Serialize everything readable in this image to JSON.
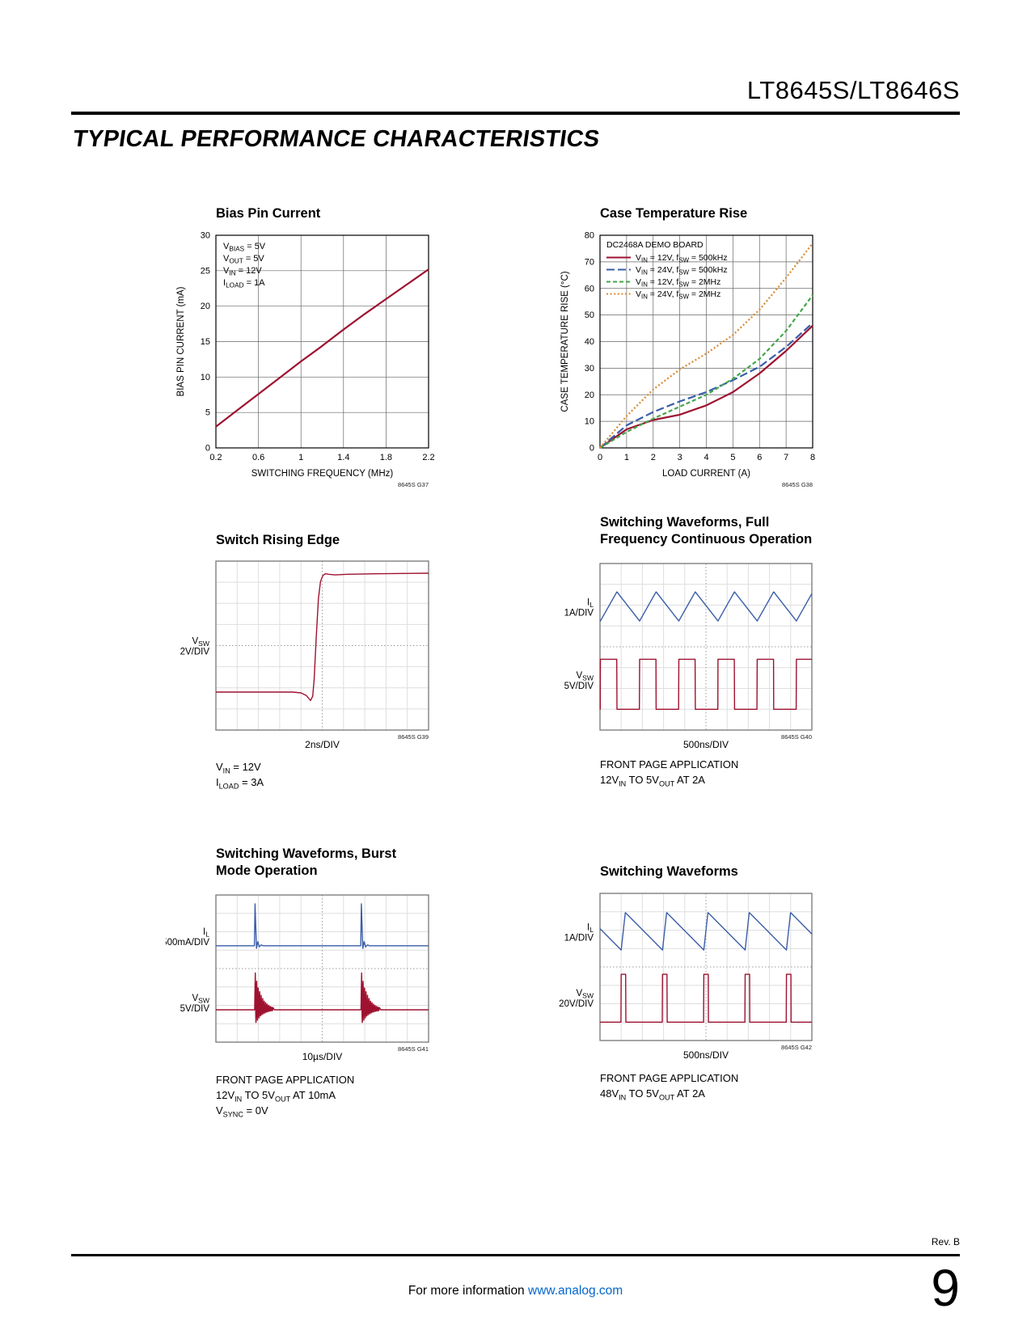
{
  "page": {
    "header_title": "LT8645S/LT8646S",
    "section_title": "TYPICAL PERFORMANCE CHARACTERISTICS",
    "footer": {
      "rev": "Rev. B",
      "page_number": "9",
      "info_text": "For more information ",
      "info_link": "www.analog.com"
    }
  },
  "colors": {
    "red": "#9E1230",
    "blue": "#3A5DA8",
    "green": "#44A64B",
    "orange": "#D78A2E",
    "grid": "#666666",
    "frame": "#000000",
    "scope_grid": "#DEDEDE",
    "scope_center": "#9A9A9A",
    "scope_frame": "#777777",
    "link": "#0066CC"
  },
  "chart_data": [
    {
      "id": "G37",
      "type": "line",
      "title_lines": [
        "Bias Pin Current"
      ],
      "xlabel": "SWITCHING FREQUENCY (MHz)",
      "ylabel": "BIAS PIN CURRENT (mA)",
      "xlim": [
        0.2,
        2.2
      ],
      "xticks": [
        "0.2",
        "0.6",
        "1",
        "1.4",
        "1.8",
        "2.2"
      ],
      "ylim": [
        0,
        30
      ],
      "yticks": [
        "0",
        "5",
        "10",
        "15",
        "20",
        "25",
        "30"
      ],
      "annotations": [
        "V_{BIAS} = 5V",
        "V_{OUT} = 5V",
        "V_{IN} = 12V",
        "I_{LOAD} = 1A"
      ],
      "watermark": "8645S G37",
      "series": [
        {
          "name": "bias pin current",
          "color": "red",
          "dash": "solid",
          "x": [
            0.2,
            0.4,
            0.6,
            0.8,
            1.0,
            1.2,
            1.4,
            1.6,
            1.8,
            2.0,
            2.2
          ],
          "y": [
            3.0,
            5.3,
            7.6,
            9.9,
            12.2,
            14.4,
            16.7,
            18.9,
            21.0,
            23.1,
            25.2
          ]
        }
      ]
    },
    {
      "id": "G38",
      "type": "line",
      "title_lines": [
        "Case Temperature Rise"
      ],
      "xlabel": "LOAD CURRENT (A)",
      "ylabel": "CASE TEMPERATURE RISE (°C)",
      "xlim": [
        0,
        8
      ],
      "xticks": [
        "0",
        "1",
        "2",
        "3",
        "4",
        "5",
        "6",
        "7",
        "8"
      ],
      "ylim": [
        0,
        80
      ],
      "yticks": [
        "0",
        "10",
        "20",
        "30",
        "40",
        "50",
        "60",
        "70",
        "80"
      ],
      "legend_title": "DC2468A DEMO BOARD",
      "watermark": "8645S G38",
      "series": [
        {
          "name": "V_{IN} = 12V, f_{SW} = 500kHz",
          "color": "red",
          "dash": "solid",
          "x": [
            0,
            1,
            2,
            3,
            4,
            5,
            6,
            7,
            8
          ],
          "y": [
            0,
            7,
            10.5,
            12.5,
            16,
            21,
            28,
            36.5,
            46
          ]
        },
        {
          "name": "V_{IN} = 24V, f_{SW} = 500kHz",
          "color": "blue",
          "dash": "long",
          "x": [
            0,
            1,
            2,
            3,
            4,
            5,
            6,
            7,
            8
          ],
          "y": [
            0,
            8.5,
            13.5,
            17.5,
            21,
            25.5,
            30.5,
            38,
            47
          ]
        },
        {
          "name": "V_{IN} = 12V, f_{SW} = 2MHz",
          "color": "green",
          "dash": "mid",
          "x": [
            0,
            1,
            2,
            3,
            4,
            5,
            6,
            7,
            8
          ],
          "y": [
            0,
            6,
            11,
            15.5,
            20,
            26,
            33.5,
            44,
            57.5
          ]
        },
        {
          "name": "V_{IN} = 24V, f_{SW} = 2MHz",
          "color": "orange",
          "dash": "dot",
          "x": [
            0,
            1,
            2,
            3,
            4,
            5,
            6,
            7,
            8
          ],
          "y": [
            0,
            12,
            22,
            29.5,
            35.5,
            42.5,
            52,
            64,
            77
          ]
        }
      ]
    },
    {
      "id": "G39",
      "type": "scope",
      "title_lines": [
        "Switch Rising Edge"
      ],
      "time_label": "2ns/DIV",
      "watermark": "8645S G39",
      "left_labels": [
        {
          "lines": [
            "V_{SW}",
            "2V/DIV"
          ],
          "y": 0.5
        }
      ],
      "notes": [
        "V_{IN} = 12V",
        "I_{LOAD} = 3A"
      ],
      "traces": [
        {
          "color": "red",
          "gen": "points",
          "points": [
            [
              0,
              0.775
            ],
            [
              0.36,
              0.775
            ],
            [
              0.4,
              0.78
            ],
            [
              0.425,
              0.795
            ],
            [
              0.445,
              0.825
            ],
            [
              0.455,
              0.8
            ],
            [
              0.462,
              0.7
            ],
            [
              0.472,
              0.45
            ],
            [
              0.482,
              0.22
            ],
            [
              0.492,
              0.12
            ],
            [
              0.503,
              0.085
            ],
            [
              0.515,
              0.075
            ],
            [
              0.53,
              0.078
            ],
            [
              0.56,
              0.082
            ],
            [
              0.62,
              0.078
            ],
            [
              0.75,
              0.075
            ],
            [
              1,
              0.072
            ]
          ]
        }
      ]
    },
    {
      "id": "G40",
      "type": "scope",
      "title_lines": [
        "Switching Waveforms, Full",
        "Frequency Continuous Operation"
      ],
      "time_label": "500ns/DIV",
      "watermark": "8645S G40",
      "left_labels": [
        {
          "lines": [
            "I_{L}",
            "1A/DIV"
          ],
          "y": 0.26
        },
        {
          "lines": [
            "V_{SW}",
            "5V/DIV"
          ],
          "y": 0.7
        }
      ],
      "notes": [
        "FRONT PAGE APPLICATION",
        "12V_{IN} TO 5V_{OUT} AT 2A"
      ],
      "traces": [
        {
          "color": "blue",
          "gen": "tri",
          "period": 0.185,
          "rise": 0.42,
          "x0": 0.002,
          "yTop": 0.17,
          "yBottom": 0.345
        },
        {
          "color": "red",
          "gen": "pulse",
          "period": 0.185,
          "width": 0.42,
          "x0": 0.002,
          "yHigh": 0.575,
          "yLow": 0.875
        }
      ]
    },
    {
      "id": "G41",
      "type": "scope",
      "title_lines": [
        "Switching Waveforms, Burst",
        "Mode Operation"
      ],
      "time_label": "10µs/DIV",
      "watermark": "8645S G41",
      "left_labels": [
        {
          "lines": [
            "I_{L}",
            "500mA/DIV"
          ],
          "y": 0.28
        },
        {
          "lines": [
            "V_{SW}",
            "5V/DIV"
          ],
          "y": 0.73
        }
      ],
      "notes": [
        "FRONT PAGE APPLICATION",
        "12V_{IN} TO 5V_{OUT} AT 10mA",
        "V_{SYNC} = 0V"
      ],
      "traces": [
        {
          "color": "blue",
          "gen": "burst_spike",
          "baseline": 0.345,
          "peak": 0.06,
          "positions": [
            0.185,
            0.685
          ]
        },
        {
          "color": "red",
          "gen": "burst_ring",
          "baseline": 0.78,
          "ampUp": 0.25,
          "ampDown": 0.1,
          "positions": [
            0.185,
            0.685
          ],
          "ringPeriod": 0.007,
          "decay": 0.03
        }
      ]
    },
    {
      "id": "G42",
      "type": "scope",
      "title_lines": [
        "Switching Waveforms"
      ],
      "time_label": "500ns/DIV",
      "watermark": "8645S G42",
      "left_labels": [
        {
          "lines": [
            "I_{L}",
            "1A/DIV"
          ],
          "y": 0.26
        },
        {
          "lines": [
            "V_{SW}",
            "20V/DIV"
          ],
          "y": 0.71
        }
      ],
      "notes": [
        "FRONT PAGE APPLICATION",
        "48V_{IN} TO 5V_{OUT} AT 2A"
      ],
      "traces": [
        {
          "color": "blue",
          "gen": "tri",
          "period": 0.195,
          "rise": 0.1,
          "x0": 0.1,
          "yTop": 0.13,
          "yBottom": 0.385
        },
        {
          "color": "red",
          "gen": "pulse",
          "period": 0.195,
          "width": 0.11,
          "x0": 0.1,
          "yHigh": 0.55,
          "yLow": 0.875
        }
      ]
    }
  ]
}
